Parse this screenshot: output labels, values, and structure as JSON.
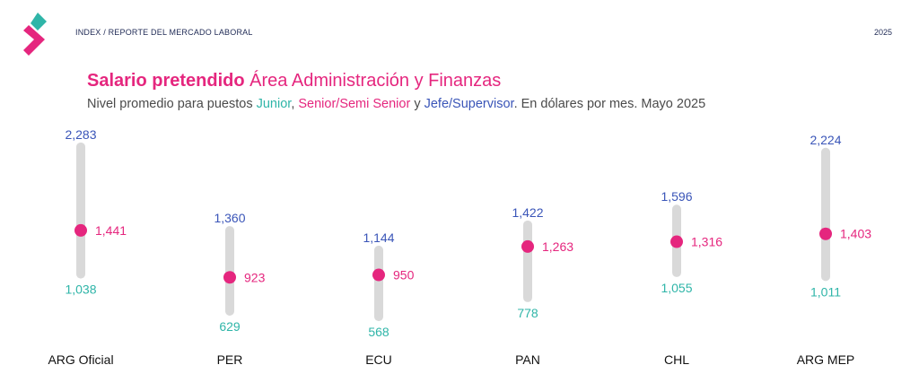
{
  "header": {
    "breadcrumb": "INDEX / REPORTE DEL MERCADO LABORAL",
    "year": "2025"
  },
  "title": {
    "bold": "Salario pretendido",
    "rest": "Área Administración y Finanzas"
  },
  "subtitle": {
    "prefix": "Nivel promedio para puestos ",
    "junior": "Junior",
    "sep1": ", ",
    "senior": "Senior/Semi Senior",
    "sep2": " y ",
    "jefe": "Jefe/Supervisor",
    "suffix": ". En dólares por mes. Mayo 2025"
  },
  "colors": {
    "junior": "#2fb5a8",
    "senior": "#e5267e",
    "jefe": "#3a55b8",
    "track": "#d9d9d9",
    "logo_pink": "#e5267e",
    "logo_teal": "#2fb5a8"
  },
  "chart_data": {
    "type": "range-dot",
    "categories": [
      "ARG Oficial",
      "PER",
      "ECU",
      "PAN",
      "CHL",
      "ARG MEP"
    ],
    "series": [
      {
        "name": "Junior",
        "values": [
          1038,
          629,
          568,
          778,
          1055,
          1011
        ],
        "labels": [
          "1,038",
          "629",
          "568",
          "778",
          "1,055",
          "1,011"
        ]
      },
      {
        "name": "Senior/Semi Senior",
        "values": [
          1441,
          923,
          950,
          1263,
          1316,
          1403
        ],
        "labels": [
          "1,441",
          "923",
          "950",
          "1,263",
          "1,316",
          "1,403"
        ]
      },
      {
        "name": "Jefe/Supervisor",
        "values": [
          2283,
          1360,
          1144,
          1422,
          1596,
          2224
        ],
        "labels": [
          "2,283",
          "1,360",
          "1,144",
          "1,422",
          "1,596",
          "2,224"
        ]
      }
    ],
    "xlabel": "",
    "ylabel": "",
    "grid": false
  }
}
